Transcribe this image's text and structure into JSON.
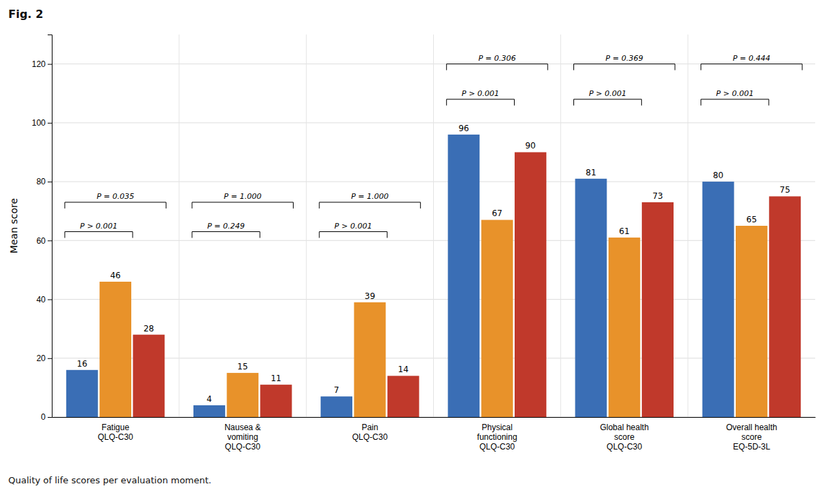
{
  "chart_data": {
    "type": "bar",
    "title": "Fig. 2",
    "caption": "Quality of life scores per evaluation moment.",
    "ylabel": "Mean score",
    "categories": [
      "Fatigue\nQLQ-C30",
      "Nausea &\nvomiting\nQLQ-C30",
      "Pain\nQLQ-C30",
      "Physical\nfunctioning\nQLQ-C30",
      "Global health\nscore\nQLQ-C30",
      "Overall health\nscore\nEQ-5D-3L"
    ],
    "series": [
      {
        "color": "#3a6eb5",
        "values": [
          16,
          4,
          7,
          96,
          81,
          80
        ]
      },
      {
        "color": "#e8922a",
        "values": [
          46,
          15,
          39,
          67,
          61,
          65
        ]
      },
      {
        "color": "#c0392b",
        "values": [
          28,
          11,
          14,
          90,
          73,
          75
        ]
      }
    ],
    "ylim": [
      0,
      130
    ],
    "yticks": [
      0,
      20,
      40,
      60,
      80,
      100,
      120
    ],
    "grid": true,
    "data_labels": true,
    "annotations": [
      {
        "text": "P = 0.035",
        "category": 0,
        "series": [
          0,
          2
        ],
        "y": 73
      },
      {
        "text": "P > 0.001",
        "category": 0,
        "series": [
          0,
          1
        ],
        "y": 63
      },
      {
        "text": "P = 1.000",
        "category": 1,
        "series": [
          0,
          2
        ],
        "y": 73
      },
      {
        "text": "P = 0.249",
        "category": 1,
        "series": [
          0,
          1
        ],
        "y": 63
      },
      {
        "text": "P = 1.000",
        "category": 2,
        "series": [
          0,
          2
        ],
        "y": 73
      },
      {
        "text": "P > 0.001",
        "category": 2,
        "series": [
          0,
          1
        ],
        "y": 63
      },
      {
        "text": "P = 0.306",
        "category": 3,
        "series": [
          0,
          2
        ],
        "y": 120
      },
      {
        "text": "P > 0.001",
        "category": 3,
        "series": [
          0,
          1
        ],
        "y": 108
      },
      {
        "text": "P = 0.369",
        "category": 4,
        "series": [
          0,
          2
        ],
        "y": 120
      },
      {
        "text": "P > 0.001",
        "category": 4,
        "series": [
          0,
          1
        ],
        "y": 108
      },
      {
        "text": "P = 0.444",
        "category": 5,
        "series": [
          0,
          2
        ],
        "y": 120
      },
      {
        "text": "P > 0.001",
        "category": 5,
        "series": [
          0,
          1
        ],
        "y": 108
      }
    ]
  }
}
